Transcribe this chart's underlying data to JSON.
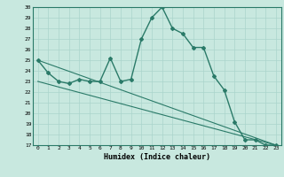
{
  "title": "",
  "xlabel": "Humidex (Indice chaleur)",
  "background_color": "#c8e8df",
  "line_color": "#2a7a68",
  "grid_color": "#aad4cc",
  "ylim": [
    17,
    30
  ],
  "xlim": [
    -0.5,
    23.5
  ],
  "yticks": [
    17,
    18,
    19,
    20,
    21,
    22,
    23,
    24,
    25,
    26,
    27,
    28,
    29,
    30
  ],
  "xticks": [
    0,
    1,
    2,
    3,
    4,
    5,
    6,
    7,
    8,
    9,
    10,
    11,
    12,
    13,
    14,
    15,
    16,
    17,
    18,
    19,
    20,
    21,
    22,
    23
  ],
  "line1_x": [
    0,
    1,
    2,
    3,
    4,
    5,
    6,
    7,
    8,
    9,
    10,
    11,
    12,
    13,
    14,
    15,
    16,
    17,
    18,
    19,
    20,
    21,
    22,
    23
  ],
  "line1_y": [
    25.0,
    23.8,
    23.0,
    22.8,
    23.2,
    23.0,
    23.0,
    25.2,
    23.0,
    23.2,
    27.0,
    29.0,
    30.0,
    28.0,
    27.5,
    26.2,
    26.2,
    23.5,
    22.2,
    19.2,
    17.5,
    17.5,
    17.0,
    17.0
  ],
  "line2_x": [
    0,
    23
  ],
  "line2_y": [
    25.0,
    17.0
  ],
  "line3_x": [
    0,
    23
  ],
  "line3_y": [
    23.0,
    17.0
  ]
}
